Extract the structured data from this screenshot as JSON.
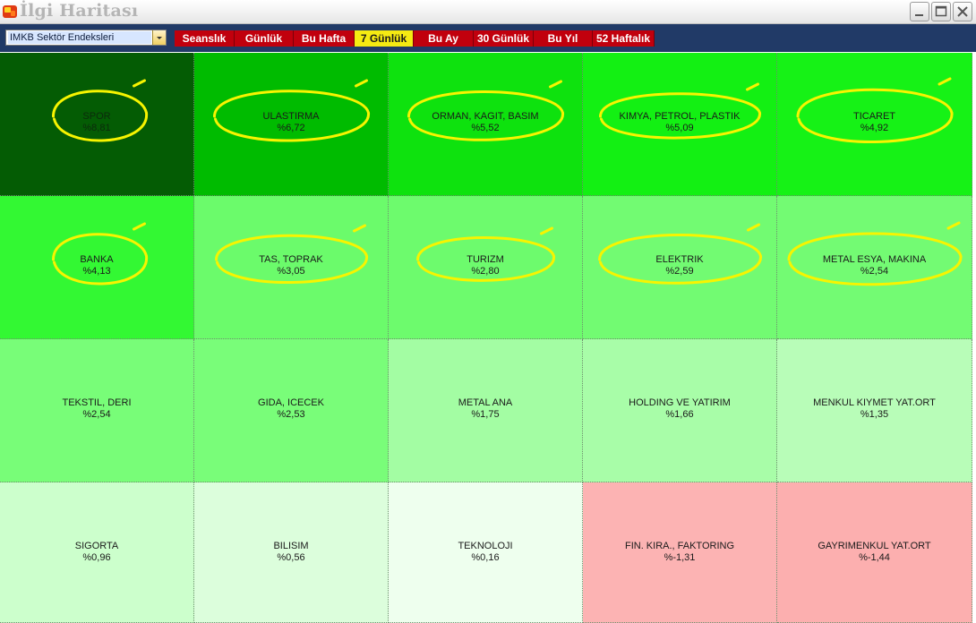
{
  "window": {
    "title": "İlgi Haritası",
    "app_icon": "heatmap-app-icon",
    "buttons": {
      "minimize": "minimize-icon",
      "maximize": "maximize-icon",
      "close": "close-icon"
    }
  },
  "toolbar": {
    "index_select": {
      "value": "IMKB Sektör Endeksleri"
    },
    "periods": [
      "Seanslık",
      "Günlük",
      "Bu Hafta",
      "7 Günlük",
      "Bu Ay",
      "30 Günlük",
      "Bu Yıl",
      "52 Haftalık"
    ],
    "active_period": "7 Günlük"
  },
  "heatmap": {
    "rows": [
      [
        {
          "name": "SPOR",
          "value": "%8,81",
          "color": "#045c04",
          "circled": true
        },
        {
          "name": "ULASTIRMA",
          "value": "%6,72",
          "color": "#00bb00",
          "circled": true
        },
        {
          "name": "ORMAN, KAGIT, BASIM",
          "value": "%5,52",
          "color": "#0ee20e",
          "circled": true
        },
        {
          "name": "KIMYA, PETROL, PLASTIK",
          "value": "%5,09",
          "color": "#13f013",
          "circled": true
        },
        {
          "name": "TICARET",
          "value": "%4,92",
          "color": "#16f216",
          "circled": true
        }
      ],
      [
        {
          "name": "BANKA",
          "value": "%4,13",
          "color": "#33f833",
          "circled": true
        },
        {
          "name": "TAS, TOPRAK",
          "value": "%3,05",
          "color": "#6bfb6b",
          "circled": true
        },
        {
          "name": "TURIZM",
          "value": "%2,80",
          "color": "#6dfb6d",
          "circled": true
        },
        {
          "name": "ELEKTRIK",
          "value": "%2,59",
          "color": "#72fb72",
          "circled": true
        },
        {
          "name": "METAL ESYA, MAKINA",
          "value": "%2,54",
          "color": "#73fb73",
          "circled": true
        }
      ],
      [
        {
          "name": "TEKSTIL, DERI",
          "value": "%2,54",
          "color": "#78fd78",
          "circled": false
        },
        {
          "name": "GIDA, ICECEK",
          "value": "%2,53",
          "color": "#79fd79",
          "circled": false
        },
        {
          "name": "METAL ANA",
          "value": "%1,75",
          "color": "#a3fda3",
          "circled": false
        },
        {
          "name": "HOLDING VE YATIRIM",
          "value": "%1,66",
          "color": "#a8fda8",
          "circled": false
        },
        {
          "name": "MENKUL KIYMET YAT.ORT",
          "value": "%1,35",
          "color": "#b8fdb8",
          "circled": false
        }
      ],
      [
        {
          "name": "SIGORTA",
          "value": "%0,96",
          "color": "#ccffcc",
          "circled": false
        },
        {
          "name": "BILISIM",
          "value": "%0,56",
          "color": "#dcfedc",
          "circled": false
        },
        {
          "name": "TEKNOLOJI",
          "value": "%0,16",
          "color": "#eeffee",
          "circled": false
        },
        {
          "name": "FIN. KIRA., FAKTORING",
          "value": "%-1,31",
          "color": "#fcb3b3",
          "circled": false
        },
        {
          "name": "GAYRIMENKUL YAT.ORT",
          "value": "%-1,44",
          "color": "#fcafaf",
          "circled": false
        }
      ]
    ],
    "annotation_color": "#f7f400"
  }
}
